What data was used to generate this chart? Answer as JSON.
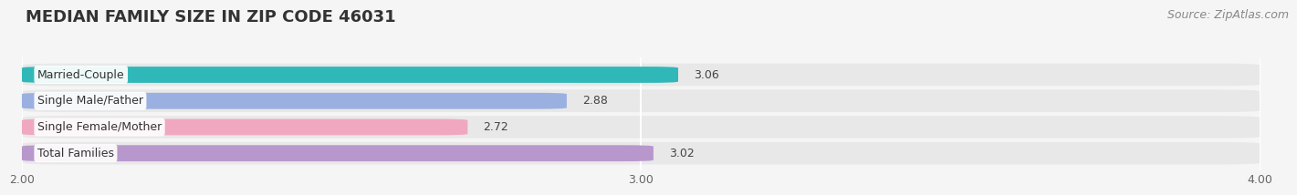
{
  "title": "MEDIAN FAMILY SIZE IN ZIP CODE 46031",
  "source": "Source: ZipAtlas.com",
  "categories": [
    "Married-Couple",
    "Single Male/Father",
    "Single Female/Mother",
    "Total Families"
  ],
  "values": [
    3.06,
    2.88,
    2.72,
    3.02
  ],
  "bar_colors": [
    "#30b8b8",
    "#9ab0e0",
    "#f0a8c0",
    "#b898cc"
  ],
  "xlim": [
    2.0,
    4.0
  ],
  "xticks": [
    2.0,
    3.0,
    4.0
  ],
  "xtick_labels": [
    "2.00",
    "3.00",
    "4.00"
  ],
  "background_color": "#f5f5f5",
  "row_bg_color": "#e8e8e8",
  "title_fontsize": 13,
  "source_fontsize": 9,
  "bar_height": 0.62,
  "bar_label_fontsize": 9,
  "value_label_fontsize": 9
}
